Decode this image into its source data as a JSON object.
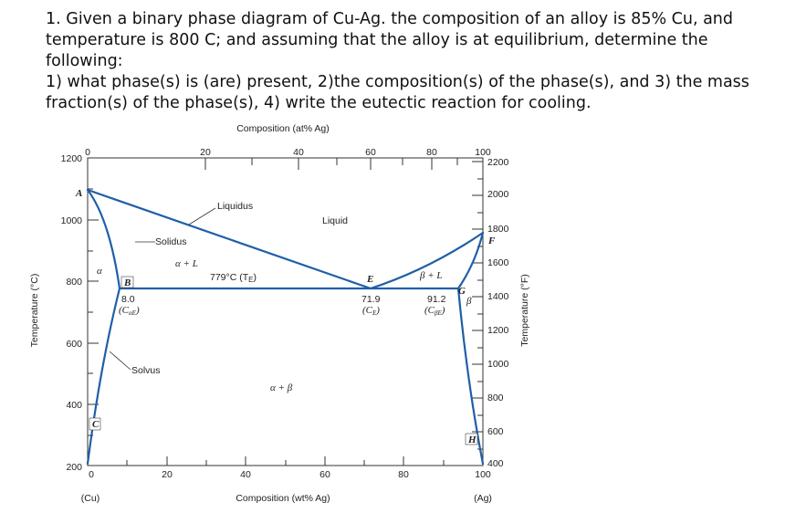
{
  "question": {
    "lines": [
      "1. Given a binary phase diagram of Cu-Ag. the composition of an alloy is 85% Cu, and",
      "temperature is 800 C; and assuming that the alloy is at equilibrium, determine the following:",
      "1) what phase(s) is (are) present, 2)the composition(s) of the phase(s), and 3) the mass",
      "fraction(s) of the phase(s), 4) write the eutectic reaction for cooling."
    ]
  },
  "figure": {
    "top_axis_label": "Composition (at% Ag)",
    "bottom_axis_label": "Composition (wt% Ag)",
    "left_axis_label": "Temperature (°C)",
    "right_axis_label": "Temperature (°F)",
    "left_end_label": "(Cu)",
    "right_end_label": "(Ag)",
    "top_ticks": [
      "0",
      "20",
      "40",
      "60",
      "80",
      "100"
    ],
    "bottom_ticks": [
      "0",
      "20",
      "40",
      "60",
      "80",
      "100"
    ],
    "left_ticks": [
      "1200",
      "1000",
      "800",
      "600",
      "400",
      "200"
    ],
    "right_ticks": [
      "2200",
      "2000",
      "1800",
      "1600",
      "1400",
      "1200",
      "1000",
      "800",
      "600",
      "400"
    ],
    "point_labels": {
      "A": "A",
      "B": "B",
      "C": "C",
      "E": "E",
      "F": "F",
      "G": "G",
      "H": "H"
    },
    "region_labels": {
      "liquidus": "Liquidus",
      "liquid": "Liquid",
      "solidus": "Solidus",
      "alpha_l": "α + L",
      "beta_l": "β + L",
      "alpha": "α",
      "beta": "β",
      "alpha_beta": "α + β",
      "solvus": "Solvus"
    },
    "eutectic_temp_label": "779°C (T",
    "eutectic_temp_sub": "E",
    "value_labels": {
      "b_val": "8.0",
      "b_sym": "(C",
      "b_sub": "αE",
      "e_val": "71.9",
      "e_sym": "(C",
      "e_sub": "E",
      "g_val": "91.2",
      "g_sym": "(C",
      "g_sub": "βE"
    },
    "colors": {
      "line": "#1f5fa8",
      "axis": "#333333"
    }
  }
}
